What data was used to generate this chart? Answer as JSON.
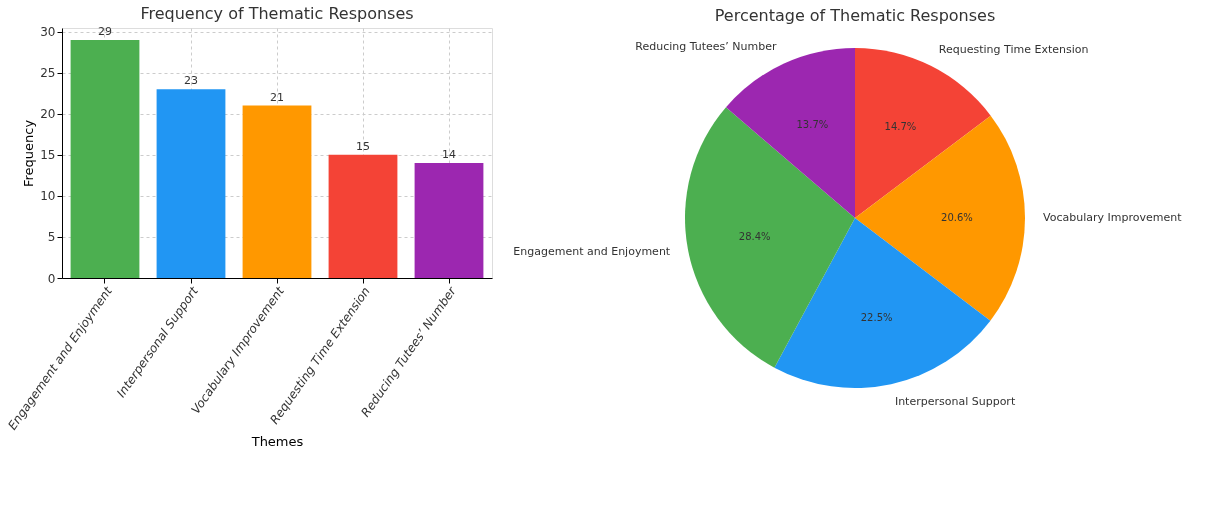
{
  "chart_data": [
    {
      "type": "bar",
      "title": "Frequency of Thematic Responses",
      "xlabel": "Themes",
      "ylabel": "Frequency",
      "categories": [
        "Engagement and Enjoyment",
        "Interpersonal Support",
        "Vocabulary Improvement",
        "Requesting Time Extension",
        "Reducing Tutees’ Number"
      ],
      "values": [
        29,
        23,
        21,
        15,
        14
      ],
      "colors": [
        "#4caf50",
        "#2196f3",
        "#ff9800",
        "#f44336",
        "#9c27b0"
      ],
      "ylim": [
        0,
        30.45
      ],
      "yticks": [
        0,
        5,
        10,
        15,
        20,
        25,
        30
      ],
      "grid": true,
      "data_labels": true
    },
    {
      "type": "pie",
      "title": "Percentage of Thematic Responses",
      "categories": [
        "Requesting Time Extension",
        "Vocabulary Improvement",
        "Interpersonal Support",
        "Engagement and Enjoyment",
        "Reducing Tutees’ Number"
      ],
      "values": [
        14.7,
        20.6,
        22.5,
        28.4,
        13.7
      ],
      "value_labels": [
        "14.7%",
        "20.6%",
        "22.5%",
        "28.4%",
        "13.7%"
      ],
      "colors": [
        "#f44336",
        "#ff9800",
        "#2196f3",
        "#4caf50",
        "#9c27b0"
      ]
    }
  ]
}
